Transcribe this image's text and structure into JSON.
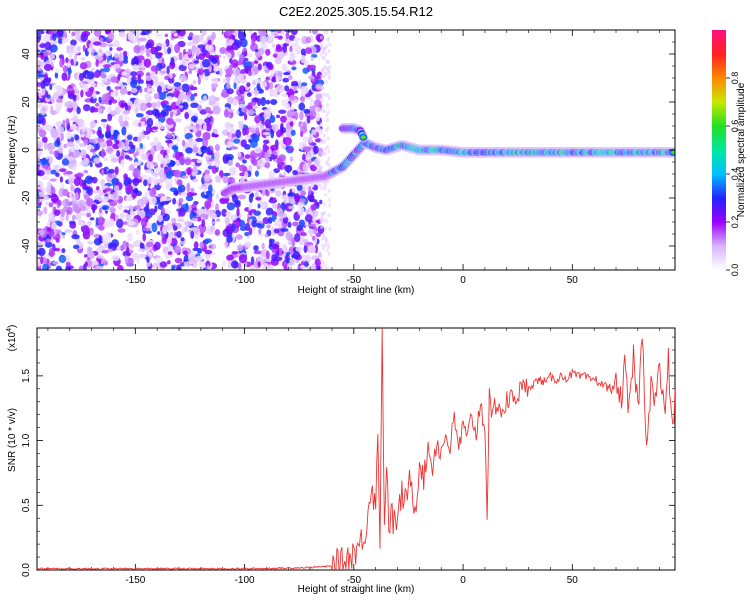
{
  "title": "C2E2.2025.305.15.54.R12",
  "chart_data": [
    {
      "type": "heatmap",
      "title": "C2E2.2025.305.15.54.R12",
      "xlabel": "Height of straight line (km)",
      "ylabel": "Frequency (Hz)",
      "xlim": [
        -195,
        97
      ],
      "ylim": [
        -50,
        50
      ],
      "xticks": [
        -150,
        -100,
        -50,
        0,
        50
      ],
      "yticks": [
        -40,
        -20,
        0,
        20,
        40
      ],
      "noise_region_x": [
        -195,
        -65
      ],
      "signal_trace": [
        {
          "x": -109,
          "y": -18
        },
        {
          "x": -105,
          "y": -16
        },
        {
          "x": -63,
          "y": -11
        },
        {
          "x": -55,
          "y": -7
        },
        {
          "x": -50,
          "y": -2
        },
        {
          "x": -45,
          "y": 3
        },
        {
          "x": -40,
          "y": 1
        },
        {
          "x": -35,
          "y": 0
        },
        {
          "x": -28,
          "y": 2
        },
        {
          "x": -20,
          "y": 0
        },
        {
          "x": -10,
          "y": 0
        },
        {
          "x": 0,
          "y": -1
        },
        {
          "x": 20,
          "y": -1
        },
        {
          "x": 50,
          "y": -1
        },
        {
          "x": 80,
          "y": -1
        },
        {
          "x": 97,
          "y": -1
        }
      ],
      "branch_trace": [
        {
          "x": -55,
          "y": 9
        },
        {
          "x": -50,
          "y": 9
        },
        {
          "x": -47,
          "y": 8
        },
        {
          "x": -45,
          "y": 4
        }
      ],
      "colorbar": {
        "label": "Normalized spectral amplitude",
        "range": [
          0,
          1
        ],
        "ticks": [
          "0.0",
          "0.2",
          "0.4",
          "0.6",
          "0.8"
        ],
        "tick_values": [
          0,
          0.2,
          0.4,
          0.6,
          0.8
        ],
        "colors": [
          "#ffffff",
          "#d9b3ff",
          "#9a00ff",
          "#2222ff",
          "#00c0ff",
          "#00e8a0",
          "#20e020",
          "#c8e800",
          "#ff8800",
          "#ff2020",
          "#ff1080"
        ]
      }
    },
    {
      "type": "line",
      "title": "",
      "xlabel": "Height of straight line (km)",
      "ylabel": "SNR (10 * v/v)",
      "y_scale_label": "(x10",
      "y_scale_exp": "4",
      "y_scale_close": ")",
      "xlim": [
        -195,
        97
      ],
      "ylim": [
        0,
        1.87
      ],
      "xticks": [
        -150,
        -100,
        -50,
        0,
        50
      ],
      "yticks": [
        "0.0",
        "0.5",
        "1.0",
        "1.5"
      ],
      "ytick_values": [
        0,
        0.5,
        1.0,
        1.5
      ],
      "series": [
        {
          "name": "SNR",
          "color": "#ee3333",
          "x": [
            -195,
            -180,
            -160,
            -140,
            -120,
            -100,
            -80,
            -70,
            -60,
            -55,
            -50,
            -47,
            -44,
            -42,
            -40,
            -39,
            -38,
            -37,
            -36,
            -35,
            -34,
            -33,
            -32,
            -31,
            -30,
            -28,
            -26,
            -24,
            -22,
            -20,
            -18,
            -16,
            -14,
            -12,
            -10,
            -8,
            -6,
            -4,
            -2,
            0,
            2,
            4,
            6,
            8,
            10,
            11,
            12,
            13,
            14,
            16,
            18,
            20,
            22,
            24,
            26,
            28,
            30,
            32,
            35,
            38,
            40,
            42,
            45,
            48,
            50,
            53,
            55,
            58,
            60,
            63,
            65,
            68,
            70,
            72,
            74,
            76,
            78,
            80,
            82,
            84,
            86,
            88,
            90,
            92,
            94,
            96,
            97
          ],
          "y": [
            0.01,
            0.01,
            0.01,
            0.01,
            0.01,
            0.01,
            0.015,
            0.02,
            0.03,
            0.06,
            0.14,
            0.2,
            0.35,
            0.7,
            0.45,
            1.1,
            0.25,
            1.87,
            0.3,
            0.9,
            0.2,
            0.55,
            0.3,
            0.45,
            0.35,
            0.6,
            0.5,
            0.75,
            0.45,
            0.85,
            0.7,
            0.95,
            0.8,
            1.0,
            0.9,
            1.05,
            0.95,
            1.15,
            0.95,
            1.1,
            1.0,
            1.2,
            1.05,
            1.3,
            1.1,
            0.45,
            1.35,
            1.1,
            1.25,
            1.3,
            1.2,
            1.3,
            1.32,
            1.35,
            1.38,
            1.4,
            1.42,
            1.44,
            1.47,
            1.45,
            1.49,
            1.47,
            1.5,
            1.48,
            1.52,
            1.49,
            1.5,
            1.47,
            1.48,
            1.44,
            1.42,
            1.4,
            1.45,
            1.3,
            1.55,
            1.2,
            1.65,
            1.25,
            1.8,
            1.0,
            1.45,
            1.3,
            1.55,
            1.2,
            1.6,
            1.05,
            1.4
          ]
        }
      ]
    }
  ]
}
